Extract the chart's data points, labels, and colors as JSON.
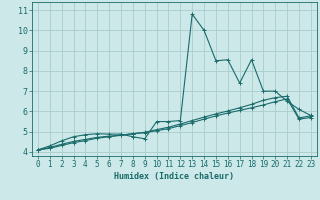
{
  "xlabel": "Humidex (Indice chaleur)",
  "xlim": [
    -0.5,
    23.5
  ],
  "ylim": [
    3.8,
    11.4
  ],
  "xticks": [
    0,
    1,
    2,
    3,
    4,
    5,
    6,
    7,
    8,
    9,
    10,
    11,
    12,
    13,
    14,
    15,
    16,
    17,
    18,
    19,
    20,
    21,
    22,
    23
  ],
  "yticks": [
    4,
    5,
    6,
    7,
    8,
    9,
    10,
    11
  ],
  "background_color": "#cce8e8",
  "grid_color": "#aacccc",
  "line_color": "#1a6b6b",
  "line1_x": [
    0,
    1,
    2,
    3,
    4,
    5,
    6,
    7,
    8,
    9,
    10,
    11,
    12,
    13,
    14,
    15,
    16,
    17,
    18,
    19,
    20,
    21,
    22,
    23
  ],
  "line1_y": [
    4.1,
    4.3,
    4.55,
    4.75,
    4.85,
    4.9,
    4.88,
    4.88,
    4.75,
    4.65,
    5.5,
    5.5,
    5.55,
    10.8,
    10.0,
    8.5,
    8.55,
    7.4,
    8.55,
    7.0,
    7.0,
    6.5,
    6.1,
    5.8
  ],
  "line2_x": [
    0,
    1,
    2,
    3,
    4,
    5,
    6,
    7,
    8,
    9,
    10,
    11,
    12,
    13,
    14,
    15,
    16,
    17,
    18,
    19,
    20,
    21,
    22,
    23
  ],
  "line2_y": [
    4.1,
    4.22,
    4.38,
    4.52,
    4.62,
    4.72,
    4.78,
    4.83,
    4.9,
    4.95,
    5.05,
    5.15,
    5.3,
    5.45,
    5.62,
    5.78,
    5.92,
    6.05,
    6.18,
    6.32,
    6.48,
    6.62,
    5.62,
    5.7
  ],
  "line3_x": [
    0,
    1,
    2,
    3,
    4,
    5,
    6,
    7,
    8,
    9,
    10,
    11,
    12,
    13,
    14,
    15,
    16,
    17,
    18,
    19,
    20,
    21,
    22,
    23
  ],
  "line3_y": [
    4.1,
    4.18,
    4.32,
    4.46,
    4.56,
    4.68,
    4.75,
    4.82,
    4.9,
    4.97,
    5.1,
    5.22,
    5.38,
    5.55,
    5.72,
    5.88,
    6.02,
    6.18,
    6.35,
    6.55,
    6.68,
    6.75,
    5.68,
    5.78
  ]
}
